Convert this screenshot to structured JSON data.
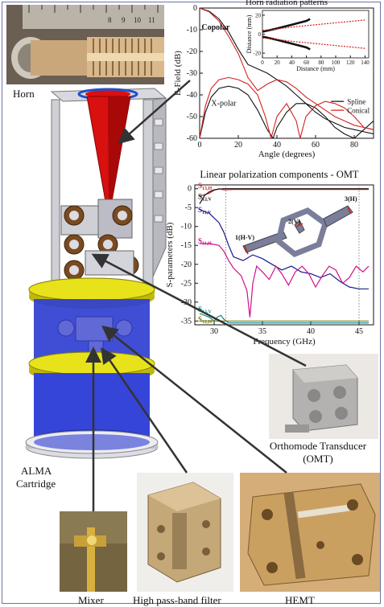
{
  "labels": {
    "horn": "Horn",
    "alma_line1": "ALMA",
    "alma_line2": "Cartridge",
    "omt_line1": "Orthomode Transducer",
    "omt_line2": "(OMT)",
    "mixer": "Mixer",
    "filter": "High pass-band filter",
    "hemt": "HEMT"
  },
  "colors": {
    "frame": "#6b74a8",
    "cartridge_blue": "#2f3fd0",
    "plate_yellow": "#e8e21a",
    "horn_red": "#d81010",
    "series_black": "#111111",
    "series_red": "#d42020",
    "series_blue": "#1a1a8a",
    "series_magenta": "#d0108a",
    "series_teal": "#0e8a8a",
    "series_olive": "#7a7a10"
  },
  "chart_data": [
    {
      "type": "line",
      "title": "Horn radiation patterns",
      "xlabel": "Angle (degrees)",
      "ylabel": "E-Field (dB)",
      "xlim": [
        0,
        90
      ],
      "ylim": [
        -60,
        0
      ],
      "xticks": [
        0,
        20,
        40,
        60,
        80
      ],
      "yticks": [
        0,
        -10,
        -20,
        -30,
        -40,
        -50,
        -60
      ],
      "annotations": [
        "Copolar",
        "X-polar"
      ],
      "legend": {
        "position": "bottom-right",
        "entries": [
          "Spline",
          "Conical"
        ]
      },
      "series": [
        {
          "name": "Spline",
          "group": "Copolar",
          "color": "#111111",
          "x": [
            0,
            5,
            10,
            15,
            20,
            25,
            30,
            35,
            40,
            45,
            50,
            55,
            60,
            65,
            70,
            75,
            80,
            85,
            90
          ],
          "y": [
            0,
            -1.5,
            -5,
            -11,
            -19,
            -26,
            -28,
            -30,
            -33,
            -36,
            -40,
            -44,
            -48,
            -51,
            -53,
            -55,
            -56,
            -57,
            -58
          ]
        },
        {
          "name": "Conical",
          "group": "Copolar",
          "color": "#d42020",
          "x": [
            0,
            5,
            10,
            15,
            20,
            25,
            30,
            35,
            40,
            45,
            50,
            55,
            60,
            65,
            70,
            75,
            80,
            85,
            90
          ],
          "y": [
            0,
            -1.8,
            -6,
            -13,
            -21,
            -32,
            -38,
            -35,
            -33,
            -34,
            -37,
            -41,
            -44,
            -47,
            -50,
            -52,
            -54,
            -55,
            -56
          ]
        },
        {
          "name": "Spline",
          "group": "X-polar",
          "color": "#111111",
          "x": [
            0,
            3,
            6,
            10,
            15,
            20,
            25,
            30,
            35,
            38,
            40,
            45,
            50,
            55,
            60,
            65,
            70,
            75,
            80,
            85,
            90
          ],
          "y": [
            -60,
            -48,
            -41,
            -37,
            -36,
            -37,
            -40,
            -47,
            -56,
            -60,
            -55,
            -48,
            -44,
            -44,
            -46,
            -50,
            -55,
            -58,
            -60,
            -56,
            -52
          ]
        },
        {
          "name": "Conical",
          "group": "X-polar",
          "color": "#d42020",
          "x": [
            0,
            3,
            6,
            10,
            15,
            20,
            25,
            30,
            34,
            37,
            40,
            45,
            50,
            52,
            55,
            60,
            65,
            70,
            75,
            80,
            85,
            90
          ],
          "y": [
            -60,
            -45,
            -37,
            -33,
            -32,
            -33,
            -35,
            -40,
            -50,
            -60,
            -50,
            -44,
            -52,
            -60,
            -50,
            -45,
            -43,
            -44,
            -46,
            -50,
            -55,
            -56
          ]
        }
      ],
      "inset": {
        "xlabel": "Distance (mm)",
        "ylabel": "Distance (mm)",
        "xlim": [
          0,
          145
        ],
        "ylim": [
          -25,
          25
        ],
        "xticks": [
          0,
          20,
          40,
          60,
          80,
          100,
          120,
          140
        ],
        "yticks": [
          20,
          0,
          -20
        ],
        "series": [
          {
            "name": "Spline",
            "color": "#111111",
            "x": [
              0,
              20,
              40,
              60,
              65
            ],
            "y_upper": [
              2.5,
              6,
              10,
              14,
              16
            ],
            "y_lower": [
              -2.5,
              -6,
              -10,
              -14,
              -16
            ]
          },
          {
            "name": "Conical",
            "color": "#d42020",
            "x": [
              0,
              20,
              40,
              60,
              80,
              100,
              120,
              140
            ],
            "y_upper": [
              4,
              5.5,
              7.5,
              9,
              10.5,
              12,
              13.5,
              15
            ],
            "y_lower": [
              -4,
              -5.5,
              -7.5,
              -9,
              -10.5,
              -12,
              -13.5,
              -15
            ]
          }
        ]
      }
    },
    {
      "type": "line",
      "title": "Linear polarization components - OMT",
      "xlabel": "Frequency (GHz)",
      "ylabel": "S-parameters (dB)",
      "xlim": [
        28,
        46.5
      ],
      "ylim": [
        -36,
        1
      ],
      "xticks": [
        30,
        35,
        40,
        45
      ],
      "yticks": [
        0,
        -5,
        -10,
        -15,
        -20,
        -25,
        -30,
        -35
      ],
      "ports": [
        "1(H-V)",
        "2(V)",
        "3(H)"
      ],
      "series": [
        {
          "name": "S13,H",
          "main": "S",
          "sub": "13,H",
          "color": "#d42020",
          "x": [
            28.5,
            29.5,
            30,
            30.5,
            31,
            32,
            34,
            36,
            38,
            40,
            42,
            44,
            46
          ],
          "y": [
            -2,
            -1.2,
            -0.4,
            0,
            -0.3,
            -0.2,
            -0.2,
            -0.2,
            -0.2,
            -0.2,
            -0.2,
            -0.2,
            -0.2
          ]
        },
        {
          "name": "S12,V",
          "main": "S",
          "sub": "12,V",
          "color": "#111111",
          "x": [
            28.5,
            29,
            29.5,
            30,
            30.5,
            31,
            32,
            34,
            36,
            38,
            40,
            42,
            44,
            46
          ],
          "y": [
            -4,
            -1.8,
            -0.8,
            -0.3,
            -0.1,
            0,
            0,
            0,
            0,
            0,
            0,
            0,
            0,
            0
          ]
        },
        {
          "name": "S11,V",
          "main": "S",
          "sub": "11,V",
          "color": "#1a1a8a",
          "x": [
            28.5,
            29.5,
            30.5,
            31,
            31.5,
            32,
            33,
            34,
            35,
            36,
            37,
            38,
            39,
            40,
            41,
            42,
            43,
            44,
            45,
            46
          ],
          "y": [
            -5.5,
            -6.5,
            -9,
            -11.5,
            -15,
            -18,
            -19,
            -17.5,
            -18.5,
            -20,
            -21.5,
            -20.5,
            -22,
            -22.5,
            -23.5,
            -22.5,
            -24.5,
            -26,
            -26.5,
            -26.5
          ]
        },
        {
          "name": "S11,H",
          "main": "S",
          "sub": "11,H",
          "color": "#d0108a",
          "x": [
            28.5,
            29.5,
            30.5,
            31,
            31.5,
            32,
            32.8,
            33.4,
            33.7,
            34,
            34.4,
            35,
            35.7,
            36.4,
            37,
            37.7,
            38.4,
            39.1,
            39.8,
            40.5,
            41.2,
            41.9,
            42.6,
            43.3,
            44,
            44.7,
            45.4,
            46
          ],
          "y": [
            -14.5,
            -14.5,
            -15,
            -16.5,
            -19,
            -21,
            -23,
            -27,
            -34,
            -25,
            -20.5,
            -22,
            -24,
            -20.5,
            -22.5,
            -25.5,
            -22,
            -20.5,
            -22.5,
            -26,
            -23,
            -20.5,
            -21.5,
            -25,
            -23.5,
            -20.5,
            -22,
            -20.5
          ]
        },
        {
          "name": "S13,V",
          "main": "S",
          "sub": "13,V",
          "color": "#0e8a8a",
          "x": [
            28.5,
            29.5,
            30,
            30.3,
            30.7,
            31,
            31.5,
            32,
            33,
            34,
            35,
            36,
            38,
            40,
            42,
            44,
            46
          ],
          "y": [
            -33,
            -34,
            -35,
            -34,
            -33.5,
            -34.5,
            -35.5,
            -35.5,
            -35.5,
            -35.5,
            -35.5,
            -35.5,
            -35.5,
            -35.5,
            -35.5,
            -35.5,
            -35.5
          ]
        },
        {
          "name": "S12,H",
          "main": "S",
          "sub": "12,H",
          "color": "#7a7a10",
          "x": [
            28.5,
            30,
            31,
            32,
            34,
            36,
            38,
            40,
            42,
            44,
            46
          ],
          "y": [
            -35,
            -35,
            -35,
            -35,
            -35,
            -35,
            -35,
            -35,
            -35,
            -35,
            -35
          ]
        }
      ]
    }
  ]
}
